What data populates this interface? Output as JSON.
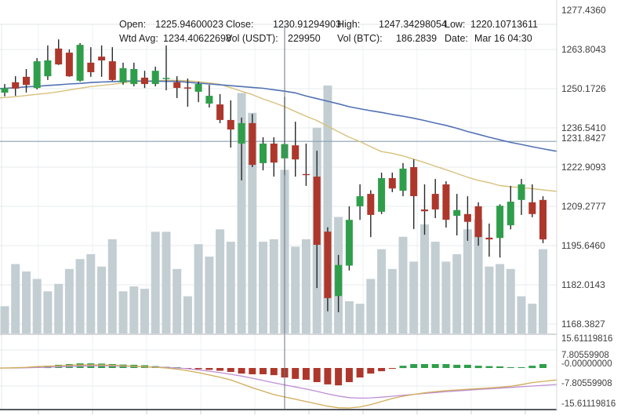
{
  "info_bar": {
    "open": {
      "label": "Open:",
      "value": "1225.94600023"
    },
    "close": {
      "label": "Close:",
      "value": "1230.91294903"
    },
    "high": {
      "label": "High:",
      "value": "1247.34298054"
    },
    "low": {
      "label": "Low:",
      "value": "1220.10713611"
    },
    "wtd_avg": {
      "label": "Wtd Avg:",
      "value": "1234.40622698"
    },
    "vol_usdt": {
      "label": "Vol (USDT):",
      "value": "229950"
    },
    "vol_btc": {
      "label": "Vol (BTC):",
      "value": "186.2839"
    },
    "date": {
      "label": "Date:",
      "value": "Mar 16 04:30"
    }
  },
  "colors": {
    "up": "#2f9e4a",
    "down": "#ae372c",
    "wick": "#26292b",
    "volume": "#c3ced3",
    "ma_fast_tan": "#d8c17c",
    "ma_slow_blue": "#5272b4",
    "macd_line_orange": "#d2ac58",
    "signal_line_purple": "#bf8fd4",
    "grid": "#e7ebee",
    "grid_vertical": "#eef1f3",
    "current_price_line": "#8ba0b3",
    "crosshair": "#6b7680",
    "panel_divider": "#a9b0b5",
    "bottom_border": "#565a5e",
    "axis_text": "#3f3f3f"
  },
  "chart_data": {
    "type": "candlestick",
    "legend_position": "none",
    "grid": true,
    "price_axis": {
      "labels": [
        "1277.4360",
        "1263.8043",
        "1250.1726",
        "1236.5410",
        "1222.9093",
        "1209.2777",
        "1195.6460",
        "1182.0143",
        "1168.3827"
      ],
      "label_step": 13.6317,
      "current_price_label": "1231.8427"
    },
    "indicator_axis": {
      "labels": [
        "15.61119816",
        "7.80559908",
        "-7.80559908",
        "-15.61119816"
      ],
      "values": [
        15.61119816,
        7.80559908,
        -7.80559908,
        -15.61119816
      ],
      "current_value_label": "-0.00000000"
    },
    "crosshair_index": 26,
    "candles_format": [
      "open",
      "high",
      "low",
      "close",
      "volume_rel"
    ],
    "candles": [
      [
        1248.8,
        1251.8,
        1247.5,
        1250.4,
        0.11
      ],
      [
        1252.4,
        1254.5,
        1247.7,
        1250.2,
        0.28
      ],
      [
        1254.3,
        1257.0,
        1248.8,
        1251.5,
        0.25
      ],
      [
        1250.4,
        1260.8,
        1249.9,
        1259.7,
        0.22
      ],
      [
        1254.5,
        1265.2,
        1253.2,
        1260.0,
        0.17
      ],
      [
        1264.1,
        1267.3,
        1258.4,
        1258.6,
        0.2
      ],
      [
        1262.7,
        1263.8,
        1254.3,
        1254.5,
        0.26
      ],
      [
        1252.9,
        1266.0,
        1252.6,
        1265.4,
        0.3
      ],
      [
        1259.2,
        1264.6,
        1254.3,
        1255.9,
        0.32
      ],
      [
        1261.3,
        1265.2,
        1254.3,
        1260.0,
        0.27
      ],
      [
        1259.7,
        1264.6,
        1252.9,
        1253.2,
        0.38
      ],
      [
        1252.4,
        1259.2,
        1251.5,
        1257.3,
        0.17
      ],
      [
        1251.8,
        1259.2,
        1251.0,
        1257.0,
        0.19
      ],
      [
        1254.0,
        1256.4,
        1250.4,
        1251.8,
        0.18
      ],
      [
        1251.8,
        1257.8,
        1251.0,
        1256.4,
        0.41
      ],
      [
        1253.5,
        1265.2,
        1249.6,
        1253.9,
        0.41
      ],
      [
        1252.4,
        1254.5,
        1246.9,
        1250.4,
        0.26
      ],
      [
        1250.6,
        1253.7,
        1243.9,
        1250.2,
        0.15
      ],
      [
        1249.1,
        1252.6,
        1245.5,
        1251.8,
        0.36
      ],
      [
        1245.0,
        1251.5,
        1243.6,
        1247.7,
        0.31
      ],
      [
        1244.7,
        1248.3,
        1238.2,
        1239.3,
        0.42
      ],
      [
        1239.3,
        1246.1,
        1229.7,
        1236.0,
        0.37
      ],
      [
        1231.1,
        1240.1,
        1218.3,
        1238.2,
        0.97
      ],
      [
        1238.2,
        1241.4,
        1222.9,
        1223.7,
        0.89
      ],
      [
        1224.3,
        1233.3,
        1221.8,
        1231.1,
        0.37
      ],
      [
        1231.1,
        1233.3,
        1219.6,
        1224.5,
        0.38
      ],
      [
        1225.946,
        1247.343,
        1220.107,
        1230.913,
        0.66
      ],
      [
        1230.5,
        1238.7,
        1219.6,
        1225.6,
        0.35
      ],
      [
        1220.5,
        1231.1,
        1216.4,
        1220.2,
        0.38
      ],
      [
        1219.6,
        1228.6,
        1180.9,
        1195.9,
        0.83
      ],
      [
        1200.5,
        1202.0,
        1172.8,
        1177.4,
        1.0
      ],
      [
        1178.1,
        1192.4,
        1172.5,
        1188.9,
        0.47
      ],
      [
        1188.7,
        1209.3,
        1187.0,
        1204.6,
        0.13
      ],
      [
        1209.3,
        1216.9,
        1204.6,
        1212.8,
        0.12
      ],
      [
        1213.6,
        1214.9,
        1198.6,
        1206.3,
        0.22
      ],
      [
        1207.4,
        1221.0,
        1206.6,
        1219.1,
        0.34
      ],
      [
        1219.1,
        1221.0,
        1214.2,
        1215.5,
        0.26
      ],
      [
        1214.7,
        1224.3,
        1212.8,
        1222.4,
        0.39
      ],
      [
        1222.9,
        1225.6,
        1201.4,
        1212.8,
        0.29
      ],
      [
        1208.2,
        1216.9,
        1199.4,
        1207.6,
        0.44
      ],
      [
        1213.6,
        1218.8,
        1205.2,
        1208.2,
        0.37
      ],
      [
        1216.9,
        1218.0,
        1201.9,
        1204.6,
        0.29
      ],
      [
        1206.0,
        1213.6,
        1199.2,
        1208.0,
        0.32
      ],
      [
        1206.6,
        1212.8,
        1197.3,
        1203.9,
        0.42
      ],
      [
        1209.3,
        1210.7,
        1195.6,
        1198.6,
        0.46
      ],
      [
        1198.4,
        1203.3,
        1191.8,
        1197.8,
        0.27
      ],
      [
        1198.3,
        1210.0,
        1191.5,
        1209.5,
        0.28
      ],
      [
        1202.7,
        1216.4,
        1201.3,
        1210.9,
        0.26
      ],
      [
        1211.5,
        1218.8,
        1206.3,
        1216.9,
        0.15
      ],
      [
        1210.7,
        1216.9,
        1205.5,
        1206.6,
        0.12
      ],
      [
        1211.5,
        1212.8,
        1196.5,
        1197.8,
        0.34
      ]
    ],
    "overlays": {
      "ma_slow_blue": [
        1250.3,
        1250.5,
        1250.8,
        1251.0,
        1251.3,
        1251.5,
        1251.8,
        1252.0,
        1252.3,
        1252.5,
        1252.6,
        1252.8,
        1252.9,
        1252.8,
        1252.8,
        1252.7,
        1252.7,
        1252.4,
        1252.1,
        1251.8,
        1251.5,
        1251.2,
        1250.9,
        1250.6,
        1250.3,
        1249.8,
        1249.3,
        1248.7,
        1247.6,
        1246.7,
        1245.8,
        1244.9,
        1243.9,
        1243.2,
        1242.5,
        1241.9,
        1241.2,
        1240.6,
        1239.9,
        1239.1,
        1238.2,
        1237.4,
        1236.4,
        1235.3,
        1234.3,
        1233.3,
        1232.4,
        1231.5,
        1230.8,
        1230.0,
        1229.3
      ],
      "ma_fast_tan": [
        1247.1,
        1247.4,
        1247.8,
        1248.2,
        1248.6,
        1249.1,
        1249.7,
        1250.3,
        1250.9,
        1251.3,
        1251.7,
        1252.2,
        1252.6,
        1252.7,
        1252.9,
        1253.0,
        1253.1,
        1252.9,
        1252.6,
        1252.2,
        1251.7,
        1250.5,
        1249.3,
        1248.1,
        1246.6,
        1245.3,
        1243.9,
        1242.2,
        1240.6,
        1239.1,
        1237.1,
        1235.2,
        1233.3,
        1231.8,
        1230.0,
        1228.3,
        1227.7,
        1226.8,
        1225.7,
        1224.5,
        1223.2,
        1222.0,
        1220.7,
        1219.4,
        1218.3,
        1217.5,
        1216.5,
        1216.1,
        1215.8,
        1215.4,
        1215.0
      ]
    },
    "macd": {
      "histogram": [
        0,
        0.1,
        0.2,
        0.5,
        1.0,
        1.4,
        1.7,
        2.0,
        2.0,
        1.9,
        1.7,
        1.5,
        1.4,
        1.2,
        0.8,
        0.5,
        0.3,
        -0.3,
        -0.5,
        -0.8,
        -1.2,
        -1.7,
        -2.4,
        -2.7,
        -2.7,
        -3.1,
        -4.1,
        -4.7,
        -5.1,
        -6.1,
        -7.1,
        -7.5,
        -6.1,
        -4.1,
        -2.4,
        -1.4,
        -0.3,
        1.0,
        1.7,
        1.7,
        1.7,
        1.7,
        1.4,
        1.4,
        1.0,
        0.8,
        0.7,
        0.3,
        0.2,
        1.0,
        1.7
      ],
      "macd_line": [
        0,
        0.1,
        0.3,
        0.6,
        0.8,
        1.0,
        1.2,
        1.3,
        1.4,
        1.3,
        1.2,
        1.0,
        0.8,
        0.5,
        0.3,
        0,
        -0.5,
        -1.2,
        -2.0,
        -3.0,
        -4.0,
        -5.2,
        -6.8,
        -8.5,
        -10.0,
        -11.5,
        -12.5,
        -13.5,
        -14.5,
        -15.5,
        -16.5,
        -17.2,
        -17.3,
        -16.8,
        -15.8,
        -14.5,
        -13.2,
        -12.2,
        -11.4,
        -10.7,
        -10.2,
        -9.8,
        -9.5,
        -9.2,
        -8.9,
        -8.6,
        -8.3,
        -7.9,
        -7.2,
        -6.3,
        -5.8
      ],
      "signal_line": [
        0,
        0,
        0.1,
        0.2,
        0.3,
        0.5,
        0.6,
        0.8,
        0.9,
        1.0,
        0.9,
        0.8,
        0.7,
        0.5,
        0.4,
        0.2,
        0,
        -0.3,
        -0.8,
        -1.4,
        -2.0,
        -2.7,
        -3.5,
        -4.4,
        -5.4,
        -6.4,
        -7.3,
        -8.2,
        -9.1,
        -10.1,
        -11.2,
        -12.1,
        -12.8,
        -13.0,
        -12.9,
        -12.6,
        -12.2,
        -11.8,
        -11.4,
        -11.0,
        -10.6,
        -10.2,
        -9.9,
        -9.6,
        -9.3,
        -9.0,
        -8.7,
        -8.4,
        -8.1,
        -7.8,
        -7.5
      ]
    }
  }
}
